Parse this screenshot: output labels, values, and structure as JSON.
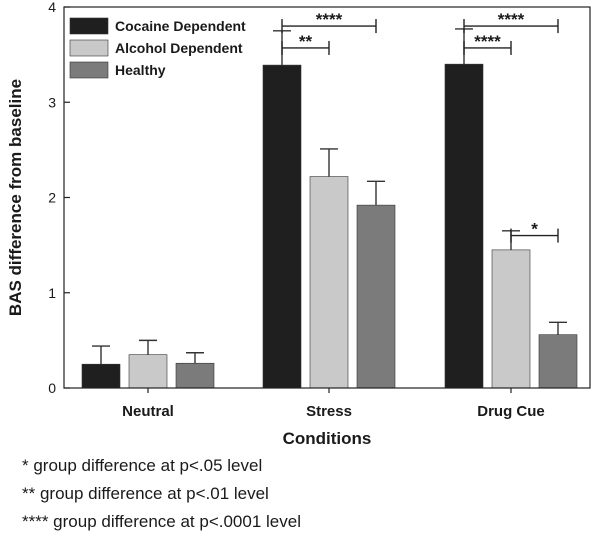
{
  "chart_data": {
    "type": "bar",
    "xlabel": "Conditions",
    "ylabel": "BAS difference from baseline",
    "ylim": [
      0,
      4
    ],
    "yticks": [
      0,
      1,
      2,
      3,
      4
    ],
    "categories": [
      "Neutral",
      "Stress",
      "Drug Cue"
    ],
    "series": [
      {
        "name": "Cocaine Dependent",
        "color": "#1f1f1f",
        "values": [
          0.25,
          3.39,
          3.4
        ],
        "errors": [
          0.19,
          0.36,
          0.37
        ]
      },
      {
        "name": "Alcohol Dependent",
        "color": "#c9c9c9",
        "values": [
          0.35,
          2.22,
          1.45
        ],
        "errors": [
          0.15,
          0.29,
          0.2
        ]
      },
      {
        "name": "Healthy",
        "color": "#7b7b7b",
        "values": [
          0.26,
          1.92,
          0.56
        ],
        "errors": [
          0.11,
          0.25,
          0.13
        ]
      }
    ],
    "legend_position": "top-left",
    "significance": [
      {
        "category": "Stress",
        "from_series": 0,
        "to_series": 2,
        "label": "****",
        "level": 3.8
      },
      {
        "category": "Stress",
        "from_series": 0,
        "to_series": 1,
        "label": "**",
        "level": 3.57
      },
      {
        "category": "Drug Cue",
        "from_series": 0,
        "to_series": 2,
        "label": "****",
        "level": 3.8
      },
      {
        "category": "Drug Cue",
        "from_series": 0,
        "to_series": 1,
        "label": "****",
        "level": 3.57
      },
      {
        "category": "Drug Cue",
        "from_series": 1,
        "to_series": 2,
        "label": "*",
        "level": 1.6
      }
    ]
  },
  "footnotes": [
    "* group difference at p<.05 level",
    "** group difference at p<.01 level",
    "**** group difference at p<.0001 level"
  ]
}
